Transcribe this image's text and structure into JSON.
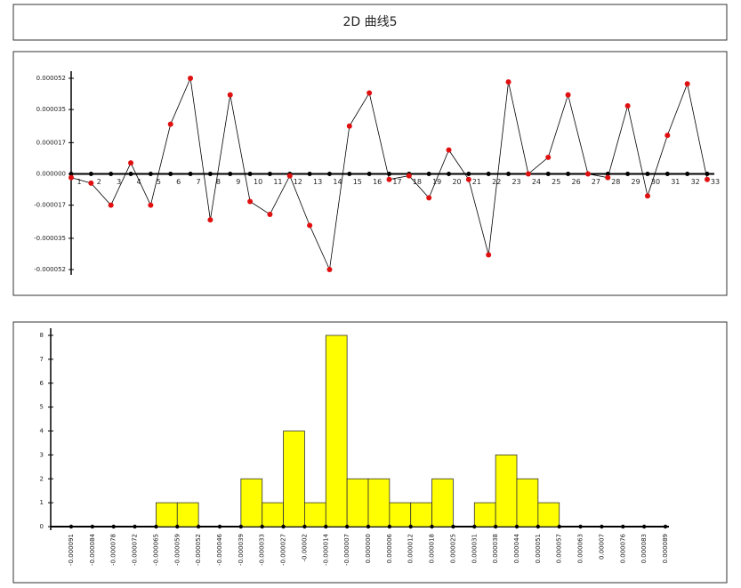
{
  "header": {
    "title": "2D 曲线5"
  },
  "chart_data": [
    {
      "type": "line",
      "x": [
        1,
        2,
        3,
        4,
        5,
        6,
        7,
        8,
        9,
        10,
        11,
        12,
        13,
        14,
        15,
        16,
        17,
        18,
        19,
        20,
        21,
        22,
        23,
        24,
        25,
        26,
        27,
        28,
        29,
        30,
        31,
        32,
        33
      ],
      "values": [
        -2e-06,
        -5e-06,
        -1.7e-05,
        6e-06,
        -1.7e-05,
        2.7e-05,
        5.2e-05,
        -2.5e-05,
        4.3e-05,
        -1.5e-05,
        -2.2e-05,
        -1e-06,
        -2.8e-05,
        -5.2e-05,
        2.6e-05,
        4.4e-05,
        -3e-06,
        -1e-06,
        -1.3e-05,
        1.3e-05,
        -3e-06,
        -4.4e-05,
        5e-05,
        0,
        9e-06,
        4.3e-05,
        0,
        -2e-06,
        3.7e-05,
        -1.2e-05,
        2.1e-05,
        4.9e-05,
        -3e-06
      ],
      "color": "#000000",
      "marker_color": "#e01010",
      "xlim": [
        1,
        33
      ],
      "ylim": [
        -5.2e-05,
        5.2e-05
      ],
      "yticks": [
        5.2e-05,
        3.5e-05,
        1.7e-05,
        {
          "value": 0,
          "label": "0.000000"
        },
        -1.7e-05,
        -3.5e-05,
        -5.2e-05
      ]
    },
    {
      "type": "histogram",
      "bins": [
        -9.1e-05,
        -8.4e-05,
        -7.8e-05,
        -7.2e-05,
        -6.5e-05,
        -5.9e-05,
        -5.2e-05,
        -4.6e-05,
        -3.9e-05,
        -3.3e-05,
        -2.7e-05,
        -2e-05,
        -1.4e-05,
        -7e-06,
        {
          "value": 0,
          "label": "0.000000"
        },
        6e-06,
        1.2e-05,
        1.8e-05,
        2.5e-05,
        3.1e-05,
        3.8e-05,
        4.4e-05,
        5.1e-05,
        5.7e-05,
        6.3e-05,
        7e-05,
        7.6e-05,
        8.3e-05,
        8.9e-05
      ],
      "values": [
        0,
        0,
        0,
        0,
        1,
        1,
        0,
        0,
        2,
        1,
        4,
        1,
        8,
        2,
        2,
        1,
        1,
        2,
        0,
        1,
        3,
        2,
        1,
        0,
        0,
        0,
        0,
        0
      ],
      "color": "#ffff00",
      "ylim": [
        0,
        8
      ],
      "yticks": [
        0,
        1,
        2,
        3,
        4,
        5,
        6,
        7,
        8
      ]
    }
  ]
}
